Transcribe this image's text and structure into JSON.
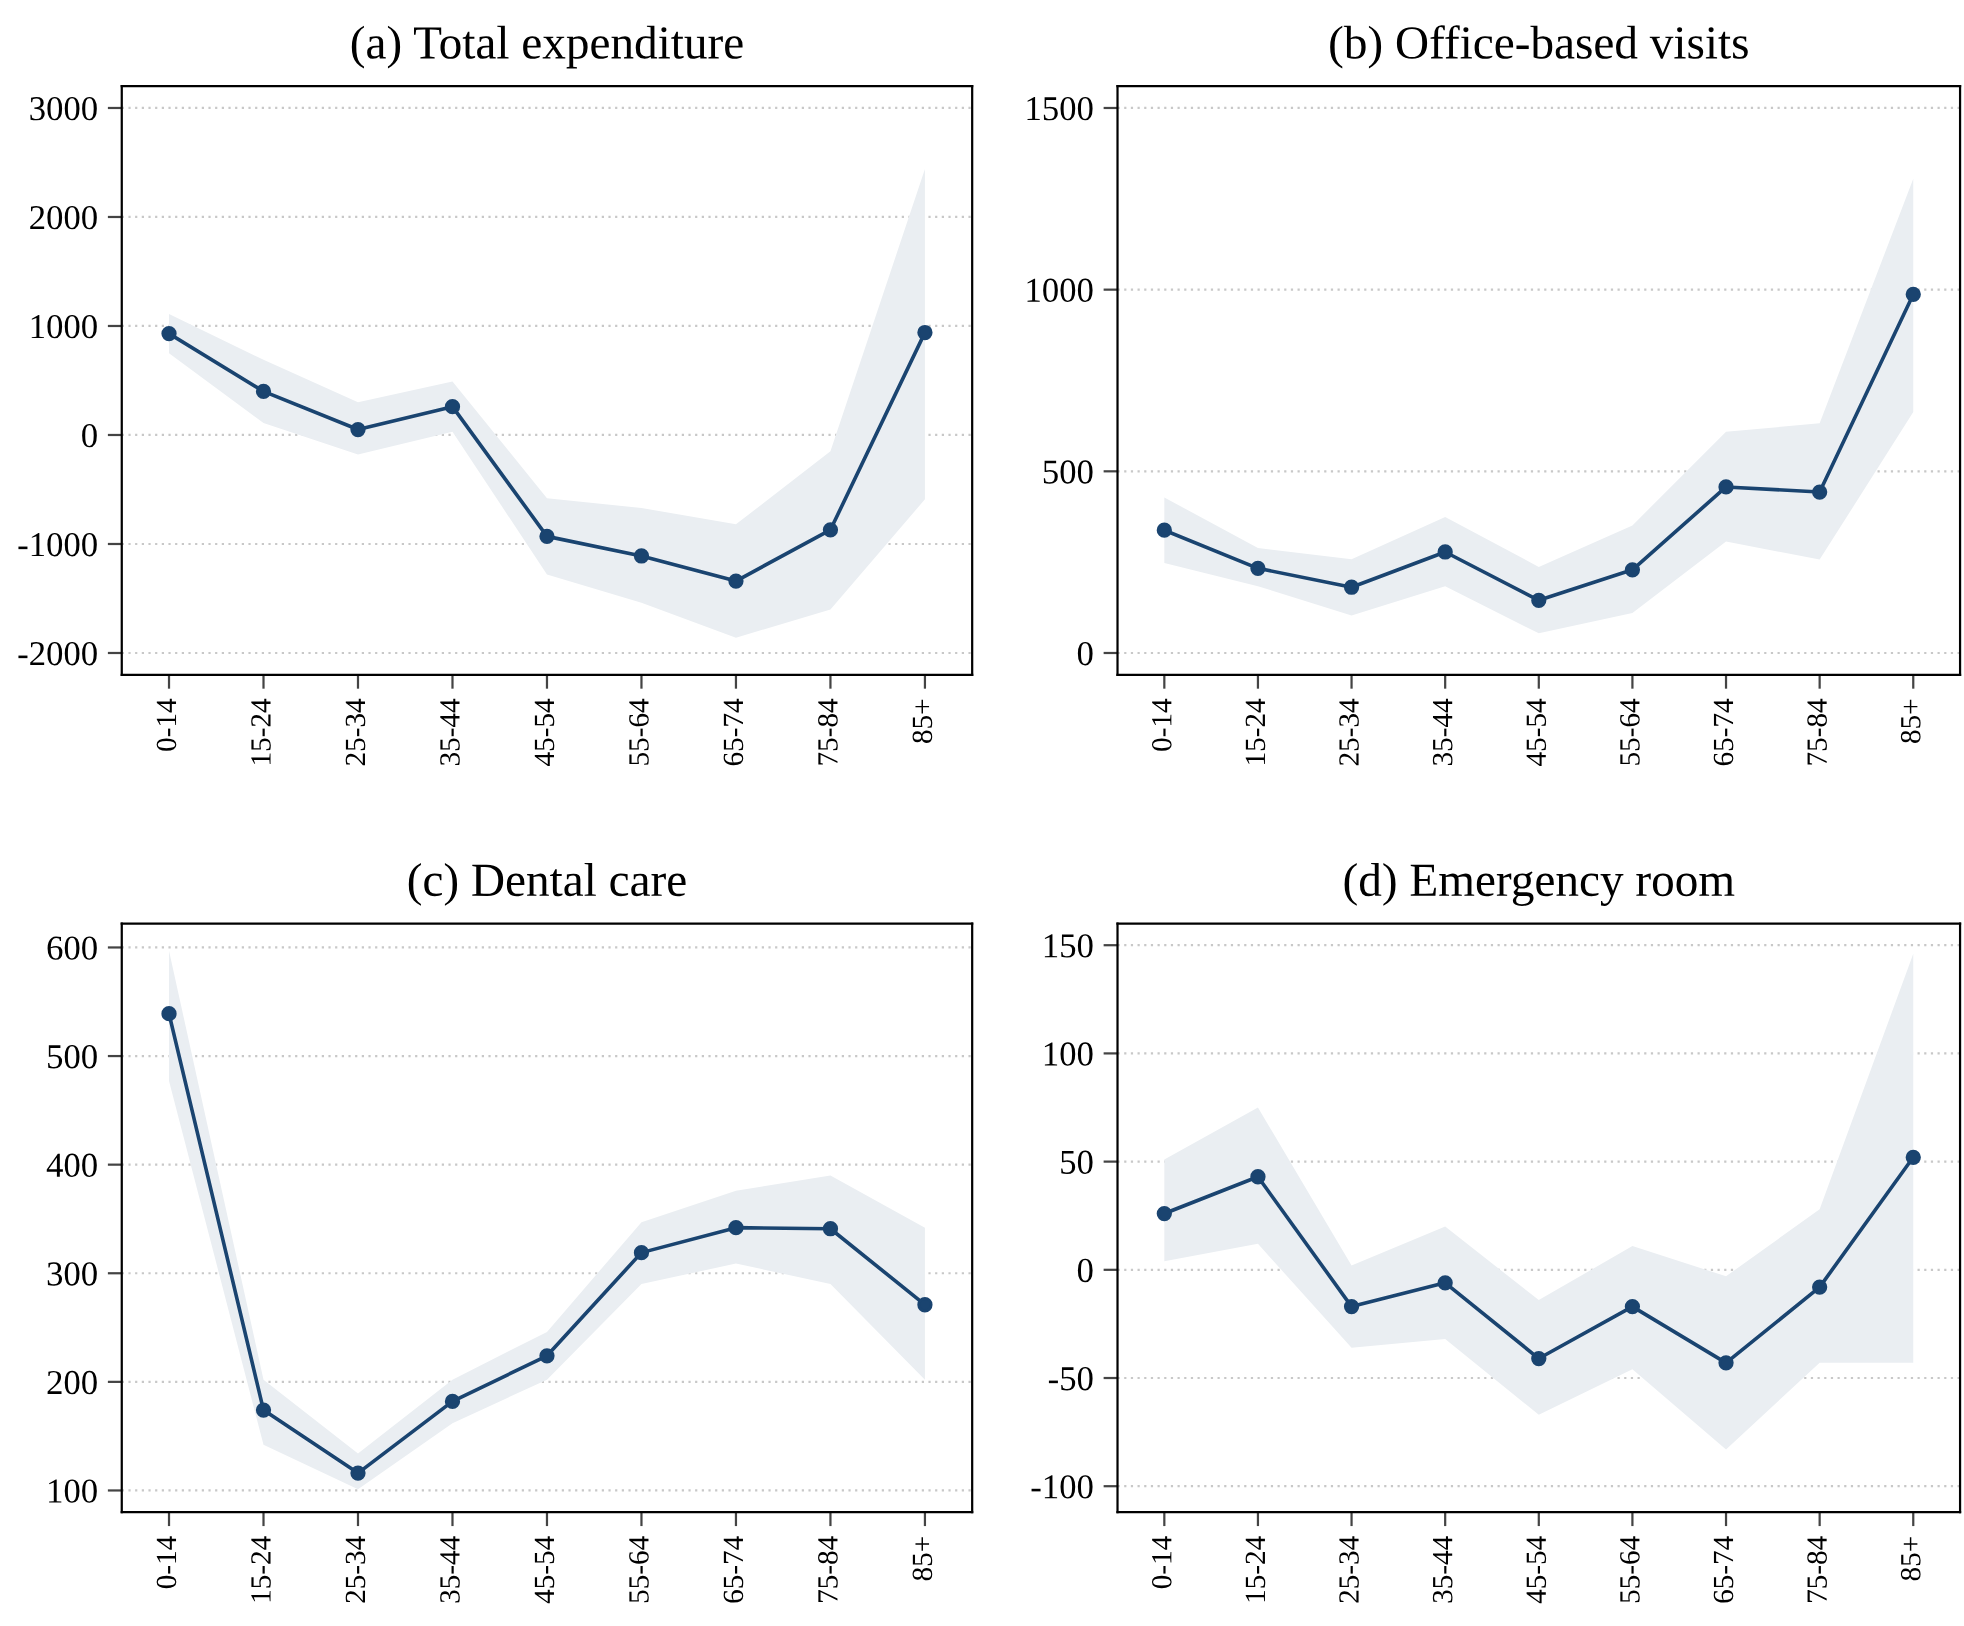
{
  "chart_data": [
    {
      "type": "line",
      "title": "(a) Total expenditure",
      "categories": [
        "0-14",
        "15-24",
        "25-34",
        "35-44",
        "45-54",
        "55-64",
        "65-74",
        "75-84",
        "85+"
      ],
      "ylim": [
        -2200,
        3200
      ],
      "yticks": [
        -2000,
        -1000,
        0,
        1000,
        2000,
        3000
      ],
      "grid": "y",
      "marker": "circle",
      "line_style": "solid",
      "series": [
        {
          "color": "#1a4470",
          "values": [
            930,
            400,
            50,
            260,
            -930,
            -1110,
            -1340,
            -870,
            940
          ],
          "lower": [
            750,
            110,
            -180,
            30,
            -1280,
            -1540,
            -1860,
            -1600,
            -590
          ],
          "upper": [
            1110,
            690,
            300,
            490,
            -580,
            -670,
            -820,
            -150,
            2440
          ]
        }
      ]
    },
    {
      "type": "line",
      "title": "(b) Office-based visits",
      "categories": [
        "0-14",
        "15-24",
        "25-34",
        "35-44",
        "45-54",
        "55-64",
        "65-74",
        "75-84",
        "85+"
      ],
      "ylim": [
        -60,
        1560
      ],
      "yticks": [
        0,
        500,
        1000,
        1500
      ],
      "grid": "y",
      "marker": "circle",
      "line_style": "solid",
      "series": [
        {
          "color": "#1a4470",
          "values": [
            338,
            233,
            181,
            278,
            145,
            229,
            457,
            443,
            987
          ],
          "lower": [
            248,
            184,
            103,
            184,
            54,
            110,
            307,
            257,
            663
          ],
          "upper": [
            428,
            289,
            258,
            374,
            237,
            351,
            609,
            632,
            1305
          ]
        }
      ]
    },
    {
      "type": "line",
      "title": "(c) Dental care",
      "categories": [
        "0-14",
        "15-24",
        "25-34",
        "35-44",
        "45-54",
        "55-64",
        "65-74",
        "75-84",
        "85+"
      ],
      "ylim": [
        80,
        622
      ],
      "yticks": [
        100,
        200,
        300,
        400,
        500,
        600
      ],
      "grid": "y",
      "marker": "circle",
      "line_style": "solid",
      "series": [
        {
          "color": "#1a4470",
          "values": [
            539,
            174,
            116,
            182,
            224,
            319,
            342,
            341,
            271
          ],
          "lower": [
            477,
            142,
            101,
            162,
            202,
            290,
            309,
            290,
            202
          ],
          "upper": [
            597,
            202,
            134,
            202,
            246,
            347,
            376,
            390,
            342
          ]
        }
      ]
    },
    {
      "type": "line",
      "title": "(d) Emergency room",
      "categories": [
        "0-14",
        "15-24",
        "25-34",
        "35-44",
        "45-54",
        "55-64",
        "65-74",
        "75-84",
        "85+"
      ],
      "ylim": [
        -112,
        160
      ],
      "yticks": [
        -100,
        -50,
        0,
        50,
        100,
        150
      ],
      "grid": "y",
      "marker": "circle",
      "line_style": "solid",
      "series": [
        {
          "color": "#1a4470",
          "values": [
            26,
            43,
            -17,
            -6,
            -41,
            -17,
            -43,
            -8,
            52
          ],
          "lower": [
            4,
            12,
            -36,
            -32,
            -67,
            -46,
            -83,
            -43,
            -43
          ],
          "upper": [
            51,
            75,
            2,
            20,
            -14,
            11,
            -3,
            28,
            146
          ]
        }
      ]
    }
  ]
}
